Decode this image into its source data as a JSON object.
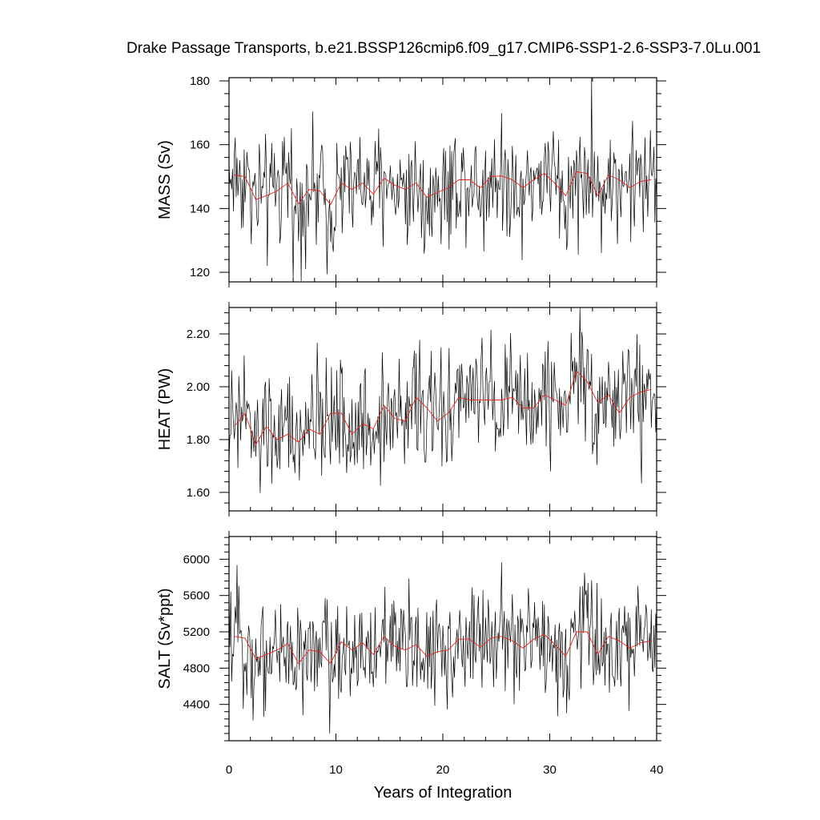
{
  "figure": {
    "title": "Drake Passage Transports, b.e21.BSSP126cmip6.f09_g17.CMIP6-SSP1-2.6-SSP3-7.0Lu.001",
    "xlabel": "Years of Integration"
  },
  "chart_data": [
    {
      "type": "line",
      "name": "MASS (Sv)",
      "ylabel": "MASS (Sv)",
      "xlim": [
        0,
        40
      ],
      "ylim": [
        117,
        181
      ],
      "x_ticks": [
        0,
        10,
        20,
        30,
        40
      ],
      "x_tick_labels": [
        "0",
        "10",
        "20",
        "30",
        "40"
      ],
      "y_ticks": [
        120,
        140,
        160,
        180
      ],
      "y_tick_labels": [
        "120",
        "140",
        "160",
        "180"
      ],
      "annual_mean": {
        "x": [
          0.5,
          1.5,
          2.5,
          3.5,
          4.5,
          5.5,
          6.5,
          7.5,
          8.5,
          9.5,
          10.5,
          11.5,
          12.5,
          13.5,
          14.5,
          15.5,
          16.5,
          17.5,
          18.5,
          19.5,
          20.5,
          21.5,
          22.5,
          23.5,
          24.5,
          25.5,
          26.5,
          27.5,
          28.5,
          29.5,
          30.5,
          31.5,
          32.5,
          33.5,
          34.5,
          35.5,
          36.5,
          37.5,
          38.5,
          39.5
        ],
        "y": [
          150.5,
          150,
          142.8,
          144,
          145.5,
          148,
          141.5,
          146,
          145.5,
          141.2,
          148,
          146,
          148,
          144.5,
          149.5,
          147.3,
          146,
          148,
          143.5,
          145,
          146.5,
          149,
          149,
          146.5,
          150,
          150.2,
          149,
          146.5,
          149,
          151,
          147.8,
          144,
          151.5,
          151,
          144,
          150.5,
          149,
          146.5,
          148.5,
          149
        ]
      },
      "monthly_range": [
        117,
        181
      ]
    },
    {
      "type": "line",
      "name": "HEAT (PW)",
      "ylabel": "HEAT (PW)",
      "xlim": [
        0,
        40
      ],
      "ylim": [
        1.53,
        2.3
      ],
      "x_ticks": [
        0,
        10,
        20,
        30,
        40
      ],
      "x_tick_labels": [
        "0",
        "10",
        "20",
        "30",
        "40"
      ],
      "y_ticks": [
        1.6,
        1.8,
        2.0,
        2.2
      ],
      "y_tick_labels": [
        "1.60",
        "1.80",
        "2.00",
        "2.20"
      ],
      "annual_mean": {
        "x": [
          0.5,
          1.5,
          2.5,
          3.5,
          4.5,
          5.5,
          6.5,
          7.5,
          8.5,
          9.5,
          10.5,
          11.5,
          12.5,
          13.5,
          14.5,
          15.5,
          16.5,
          17.5,
          18.5,
          19.5,
          20.5,
          21.5,
          22.5,
          23.5,
          24.5,
          25.5,
          26.5,
          27.5,
          28.5,
          29.5,
          30.5,
          31.5,
          32.5,
          33.5,
          34.5,
          35.5,
          36.5,
          37.5,
          38.5,
          39.5
        ],
        "y": [
          1.85,
          1.9,
          1.78,
          1.85,
          1.8,
          1.82,
          1.79,
          1.84,
          1.82,
          1.9,
          1.9,
          1.82,
          1.86,
          1.84,
          1.93,
          1.88,
          1.87,
          1.96,
          1.92,
          1.87,
          1.9,
          1.96,
          1.95,
          1.95,
          1.95,
          1.95,
          1.96,
          1.92,
          1.92,
          1.97,
          1.95,
          1.93,
          2.06,
          2.02,
          1.94,
          1.97,
          1.9,
          1.96,
          1.98,
          1.99
        ]
      },
      "monthly_range": [
        1.53,
        2.3
      ]
    },
    {
      "type": "line",
      "name": "SALT (Sv*ppt)",
      "ylabel": "SALT (Sv*ppt)",
      "xlim": [
        0,
        40
      ],
      "ylim": [
        4000,
        6250
      ],
      "x_ticks": [
        0,
        10,
        20,
        30,
        40
      ],
      "x_tick_labels": [
        "0",
        "10",
        "20",
        "30",
        "40"
      ],
      "y_ticks": [
        4400,
        4800,
        5200,
        5600,
        6000
      ],
      "y_tick_labels": [
        "4400",
        "4800",
        "5200",
        "5600",
        "6000"
      ],
      "annual_mean": {
        "x": [
          0.5,
          1.5,
          2.5,
          3.5,
          4.5,
          5.5,
          6.5,
          7.5,
          8.5,
          9.5,
          10.5,
          11.5,
          12.5,
          13.5,
          14.5,
          15.5,
          16.5,
          17.5,
          18.5,
          19.5,
          20.5,
          21.5,
          22.5,
          23.5,
          24.5,
          25.5,
          26.5,
          27.5,
          28.5,
          29.5,
          30.5,
          31.5,
          32.5,
          33.5,
          34.5,
          35.5,
          36.5,
          37.5,
          38.5,
          39.5
        ],
        "y": [
          5150,
          5130,
          4900,
          4950,
          5000,
          5070,
          4850,
          5000,
          4980,
          4850,
          5090,
          5000,
          5080,
          4950,
          5150,
          5040,
          5000,
          5060,
          4930,
          4980,
          5000,
          5120,
          5120,
          5030,
          5130,
          5150,
          5100,
          5020,
          5120,
          5170,
          5060,
          4930,
          5200,
          5200,
          4950,
          5150,
          5100,
          5020,
          5080,
          5100
        ]
      },
      "monthly_range": [
        4000,
        6250
      ]
    }
  ]
}
